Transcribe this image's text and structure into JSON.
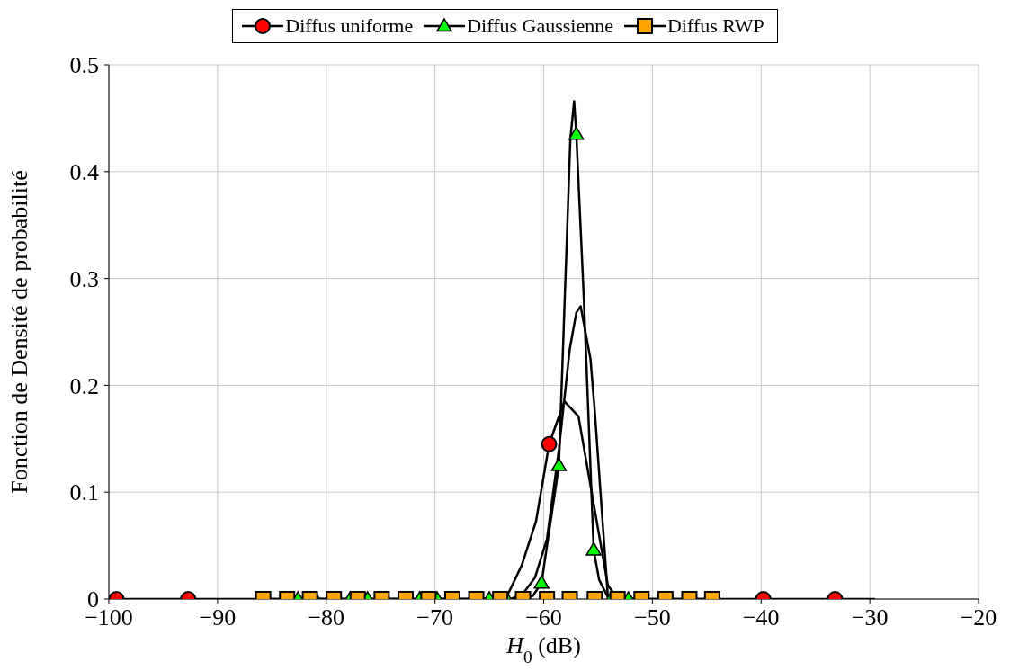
{
  "chart_data": {
    "type": "line",
    "xlabel": "H$_{0}$ (dB)",
    "ylabel": "Fonction de Densité de probabilité",
    "xlim": [
      -100,
      -20
    ],
    "ylim": [
      0,
      0.5
    ],
    "xticks": [
      {
        "value": -100,
        "label": "−100"
      },
      {
        "value": -90,
        "label": "−90"
      },
      {
        "value": -80,
        "label": "−80"
      },
      {
        "value": -70,
        "label": "−70"
      },
      {
        "value": -60,
        "label": "−60"
      },
      {
        "value": -50,
        "label": "−50"
      },
      {
        "value": -40,
        "label": "−40"
      },
      {
        "value": -30,
        "label": "−30"
      },
      {
        "value": -20,
        "label": "−20"
      }
    ],
    "yticks": [
      0,
      0.1,
      0.2,
      0.3,
      0.4,
      0.5
    ],
    "grid": true,
    "legend": "top",
    "line_style": "solid",
    "series": [
      {
        "type": "line",
        "color": "#000000",
        "marker": "none",
        "x": [
          -100,
          -63.5,
          -62.0,
          -60.7,
          -59.5,
          -58.1,
          -56.8,
          -54.1,
          -53.2,
          -29.6
        ],
        "values": [
          0,
          0,
          0.032,
          0.073,
          0.145,
          0.185,
          0.171,
          0.013,
          0,
          0
        ]
      },
      {
        "type": "line",
        "color": "#000000",
        "marker": "none",
        "x": [
          -82.6,
          -62.0,
          -61.0,
          -60.2,
          -58.6,
          -57.55,
          -57.2,
          -57.0,
          -56.3,
          -55.4,
          -54.9,
          -54.1,
          -53.5,
          -52.2
        ],
        "values": [
          0,
          0,
          0.003,
          0.015,
          0.125,
          0.43,
          0.466,
          0.435,
          0.28,
          0.046,
          0.018,
          0.002,
          0,
          0
        ]
      },
      {
        "type": "line",
        "color": "#000000",
        "marker": "none",
        "x": [
          -85.8,
          -63.0,
          -61.9,
          -60.8,
          -59.7,
          -58.6,
          -57.6,
          -57.0,
          -56.6,
          -55.7,
          -55.3,
          -54.1,
          -53.2,
          -44.5
        ],
        "values": [
          0,
          0,
          0.005,
          0.02,
          0.056,
          0.14,
          0.234,
          0.268,
          0.274,
          0.225,
          0.176,
          0.003,
          0,
          0
        ]
      },
      {
        "type": "scatter",
        "name": "Diffus uniforme",
        "color": "#ff0000",
        "marker": "circle",
        "x": [
          -99.3,
          -92.7,
          -59.5,
          -39.8,
          -33.2
        ],
        "values": [
          0,
          0,
          0.145,
          0,
          0
        ]
      },
      {
        "type": "scatter",
        "name": "Diffus Gaussienne",
        "color": "#00ff00",
        "marker": "triangle",
        "x": [
          -82.6,
          -81.0,
          -77.8,
          -76.2,
          -71.4,
          -69.8,
          -65.0,
          -63.4,
          -60.2,
          -58.6,
          -57.0,
          -55.4,
          -53.8,
          -52.2
        ],
        "values": [
          0,
          0,
          0,
          0,
          0,
          0,
          0,
          0,
          0.015,
          0.125,
          0.435,
          0.046,
          0,
          0
        ]
      },
      {
        "type": "scatter",
        "name": "Diffus RWP",
        "color": "#ffa500",
        "marker": "square",
        "x": [
          -85.8,
          -83.6,
          -81.5,
          -79.3,
          -77.1,
          -74.9,
          -72.7,
          -70.6,
          -68.4,
          -66.2,
          -64.0,
          -61.9,
          -59.7,
          -57.6,
          -55.3,
          -53.2,
          -51.0,
          -48.8,
          -46.6,
          -44.5
        ],
        "values": [
          0,
          0,
          0,
          0,
          0,
          0,
          0,
          0,
          0,
          0,
          0,
          0,
          0,
          0,
          0,
          0,
          0,
          0,
          0,
          0
        ]
      }
    ]
  }
}
